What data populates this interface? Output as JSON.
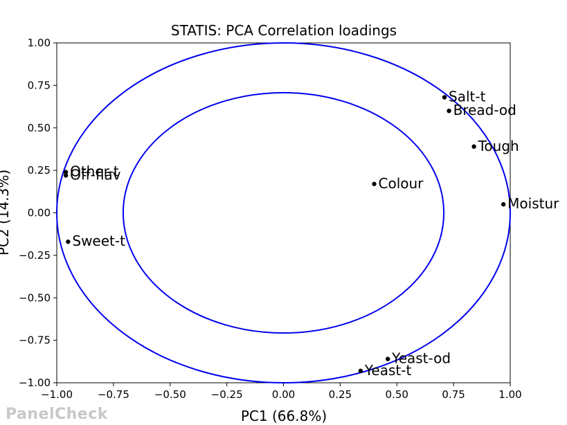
{
  "chart_data": {
    "type": "scatter",
    "title": "STATIS: PCA Correlation loadings",
    "xlabel": "PC1 (66.8%)",
    "ylabel": "PC2 (14.3%)",
    "xlim": [
      -1.0,
      1.0
    ],
    "ylim": [
      -1.0,
      1.0
    ],
    "xticks": [
      "−1.00",
      "−0.75",
      "−0.50",
      "−0.25",
      "0.00",
      "0.25",
      "0.50",
      "0.75",
      "1.00"
    ],
    "yticks": [
      "−1.00",
      "−0.75",
      "−0.50",
      "−0.25",
      "0.00",
      "0.25",
      "0.50",
      "0.75",
      "1.00"
    ],
    "circles": [
      {
        "radius": 1.0,
        "color": "#0000ee"
      },
      {
        "radius": 0.7071,
        "color": "#0000ee"
      }
    ],
    "grid": false,
    "points": [
      {
        "name": "Salt-t",
        "x": 0.71,
        "y": 0.68
      },
      {
        "name": "Bread-od",
        "x": 0.73,
        "y": 0.6
      },
      {
        "name": "Tough",
        "x": 0.84,
        "y": 0.39
      },
      {
        "name": "Colour",
        "x": 0.4,
        "y": 0.17
      },
      {
        "name": "Moistur",
        "x": 0.97,
        "y": 0.05
      },
      {
        "name": "Other-t",
        "x": -0.96,
        "y": 0.24
      },
      {
        "name": "Off-flav",
        "x": -0.96,
        "y": 0.22
      },
      {
        "name": "Sweet-t",
        "x": -0.95,
        "y": -0.17
      },
      {
        "name": "Yeast-od",
        "x": 0.46,
        "y": -0.86
      },
      {
        "name": "Yeast-t",
        "x": 0.34,
        "y": -0.93
      }
    ]
  },
  "watermark": "PanelCheck"
}
